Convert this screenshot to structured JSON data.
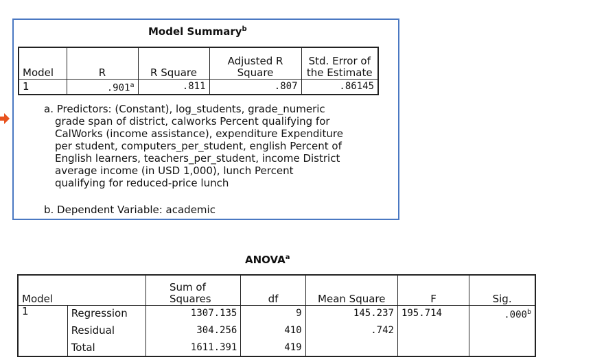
{
  "model_summary": {
    "title": "Model Summary",
    "title_sup": "b",
    "headers": [
      "Model",
      "R",
      "R Square",
      "Adjusted R Square",
      "Std. Error of the Estimate"
    ],
    "header_lines": {
      "adj_1": "Adjusted R",
      "adj_2": "Square",
      "se_1": "Std. Error of",
      "se_2": "the Estimate"
    },
    "row": {
      "model": "1",
      "r": ".901",
      "r_sup": "a",
      "r_square": ".811",
      "adj_r_square": ".807",
      "std_error": ".86145"
    },
    "footnote_a_lines": [
      "a. Predictors: (Constant), log_students, grade_numeric",
      "grade span of district, calworks Percent qualifying for",
      "CalWorks (income assistance), expenditure Expenditure",
      "per student, computers_per_student, english Percent of",
      "English learners, teachers_per_student, income District",
      "average income (in USD 1,000), lunch Percent",
      "qualifying for reduced-price lunch"
    ],
    "footnote_b": "b. Dependent Variable: academic"
  },
  "anova": {
    "title": "ANOVA",
    "title_sup": "a",
    "headers": {
      "model": "Model",
      "ss_1": "Sum of",
      "ss_2": "Squares",
      "df": "df",
      "ms": "Mean Square",
      "f": "F",
      "sig": "Sig."
    },
    "model_number": "1",
    "rows": [
      {
        "label": "Regression",
        "ss": "1307.135",
        "df": "9",
        "ms": "145.237",
        "f": "195.714",
        "sig": ".000",
        "sig_sup": "b"
      },
      {
        "label": "Residual",
        "ss": "304.256",
        "df": "410",
        "ms": ".742",
        "f": "",
        "sig": ""
      },
      {
        "label": "Total",
        "ss": "1611.391",
        "df": "419",
        "ms": "",
        "f": "",
        "sig": ""
      }
    ]
  },
  "colors": {
    "box_border": "#4a78c2",
    "arrow": "#e8531f"
  },
  "icons": {
    "pointer": "arrow-right-icon"
  }
}
